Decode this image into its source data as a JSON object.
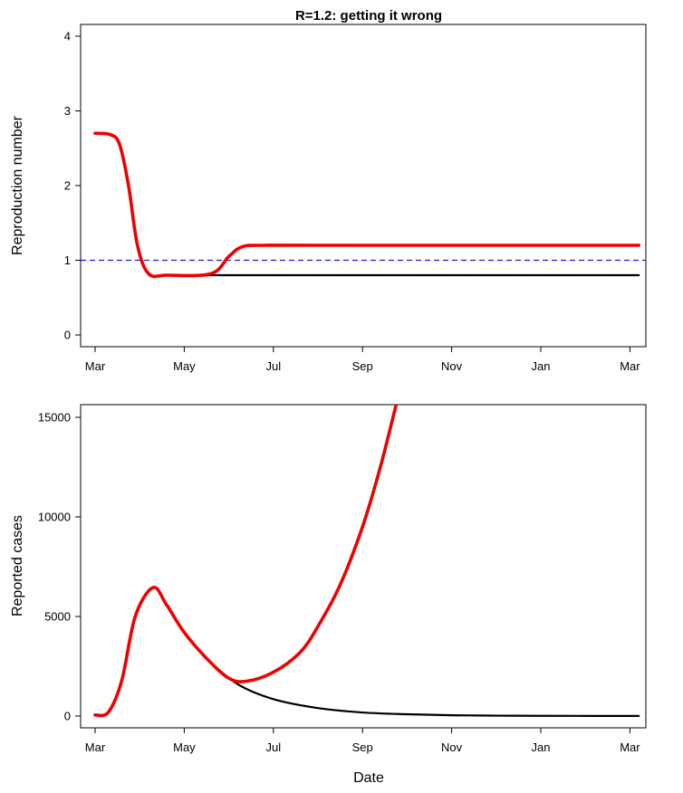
{
  "chart_data": [
    {
      "type": "line",
      "title": "R=1.2: getting it wrong",
      "xlabel": "",
      "ylabel": "Reproduction number",
      "x_ticks": [
        "Mar",
        "May",
        "Jul",
        "Sep",
        "Nov",
        "Jan",
        "Mar"
      ],
      "ylim": [
        -0.15,
        4.2
      ],
      "yticks": [
        "0",
        "1",
        "2",
        "3",
        "4"
      ],
      "reference_line": {
        "y": 1,
        "style": "dashed",
        "color": "#1f1fd1"
      },
      "series": [
        {
          "color": "#000000",
          "points": [
            [
              0,
              2.7
            ],
            [
              0.35,
              2.68
            ],
            [
              0.55,
              2.55
            ],
            [
              0.75,
              2.0
            ],
            [
              0.95,
              1.2
            ],
            [
              1.2,
              0.82
            ],
            [
              1.6,
              0.8
            ],
            [
              3,
              0.8
            ],
            [
              6,
              0.8
            ],
            [
              12.2,
              0.8
            ]
          ]
        },
        {
          "color": "#ee0000",
          "points": [
            [
              0,
              2.7
            ],
            [
              0.35,
              2.68
            ],
            [
              0.55,
              2.55
            ],
            [
              0.75,
              2.0
            ],
            [
              0.95,
              1.2
            ],
            [
              1.2,
              0.82
            ],
            [
              1.6,
              0.8
            ],
            [
              2.6,
              0.82
            ],
            [
              3.0,
              1.05
            ],
            [
              3.3,
              1.18
            ],
            [
              3.8,
              1.2
            ],
            [
              6,
              1.2
            ],
            [
              12.2,
              1.2
            ]
          ]
        }
      ]
    },
    {
      "type": "line",
      "title": "",
      "xlabel": "Date",
      "ylabel": "Reported cases",
      "x_ticks": [
        "Mar",
        "May",
        "Jul",
        "Sep",
        "Nov",
        "Jan",
        "Mar"
      ],
      "ylim": [
        -500,
        15500
      ],
      "yticks": [
        "0",
        "5000",
        "10000",
        "15000"
      ],
      "series": [
        {
          "color": "#000000",
          "points": [
            [
              0,
              50
            ],
            [
              0.3,
              200
            ],
            [
              0.6,
              1800
            ],
            [
              0.9,
              5000
            ],
            [
              1.3,
              6450
            ],
            [
              1.6,
              5600
            ],
            [
              2.0,
              4200
            ],
            [
              2.5,
              2900
            ],
            [
              3.2,
              1600
            ],
            [
              4,
              850
            ],
            [
              5,
              400
            ],
            [
              6,
              180
            ],
            [
              7,
              90
            ],
            [
              8,
              40
            ],
            [
              9,
              20
            ],
            [
              10,
              10
            ],
            [
              12.2,
              5
            ]
          ]
        },
        {
          "color": "#ee0000",
          "points": [
            [
              0,
              50
            ],
            [
              0.3,
              200
            ],
            [
              0.6,
              1800
            ],
            [
              0.9,
              5000
            ],
            [
              1.3,
              6450
            ],
            [
              1.6,
              5600
            ],
            [
              2.0,
              4200
            ],
            [
              2.5,
              2900
            ],
            [
              3.0,
              1900
            ],
            [
              3.4,
              1750
            ],
            [
              4.0,
              2200
            ],
            [
              4.6,
              3200
            ],
            [
              5.0,
              4500
            ],
            [
              5.5,
              6600
            ],
            [
              6.0,
              9500
            ],
            [
              6.4,
              12500
            ],
            [
              6.75,
              15600
            ]
          ]
        }
      ]
    }
  ]
}
